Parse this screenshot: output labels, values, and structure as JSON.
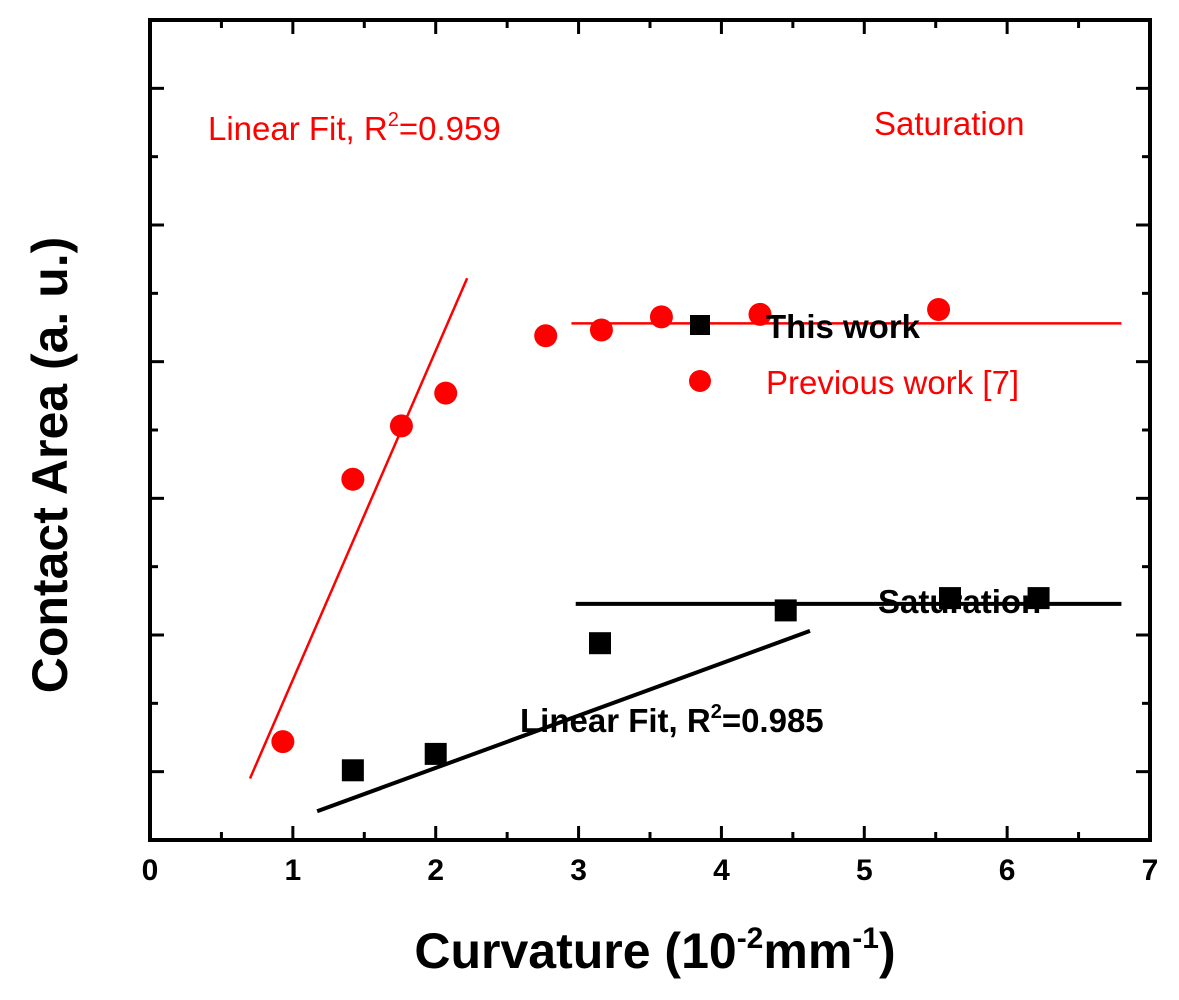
{
  "chart_data": {
    "type": "scatter",
    "xlabel": "Curvature (10",
    "xlabel_sup1": "-2",
    "xlabel_mid": "mm",
    "xlabel_sup2": "-1",
    "xlabel_end": ")",
    "ylabel": "Contact Area (a. u.)",
    "xlim": [
      0,
      7
    ],
    "ylim": [
      0,
      10
    ],
    "x_ticks": [
      0,
      1,
      2,
      3,
      4,
      5,
      6,
      7
    ],
    "x_tick_labels": [
      "0",
      "1",
      "2",
      "3",
      "4",
      "5",
      "6",
      "7"
    ],
    "y_tick_labels_shown": false,
    "series": [
      {
        "name": "This work",
        "marker": "square",
        "color": "#000000",
        "x": [
          1.42,
          2.0,
          3.15,
          4.45,
          5.6,
          6.22
        ],
        "y": [
          0.85,
          1.05,
          2.4,
          2.8,
          2.95,
          2.95
        ]
      },
      {
        "name": "Previous work [7]",
        "marker": "circle",
        "color": "#ff0000",
        "x": [
          0.93,
          1.42,
          1.76,
          2.07,
          2.77,
          3.16,
          3.58,
          4.27,
          5.52
        ],
        "y": [
          1.2,
          4.4,
          5.05,
          5.45,
          6.15,
          6.22,
          6.38,
          6.41,
          6.47
        ]
      }
    ],
    "fit_lines": [
      {
        "series": "Previous work [7]",
        "kind": "linear",
        "x": [
          0.7,
          2.22
        ],
        "y": [
          0.75,
          6.85
        ],
        "color": "#ff0000"
      },
      {
        "series": "Previous work [7]",
        "kind": "saturation",
        "x": [
          2.95,
          6.8
        ],
        "y": [
          6.3,
          6.3
        ],
        "color": "#ff0000"
      },
      {
        "series": "This work",
        "kind": "linear",
        "x": [
          1.17,
          4.62
        ],
        "y": [
          0.35,
          2.55
        ],
        "color": "#000000"
      },
      {
        "series": "This work",
        "kind": "saturation",
        "x": [
          2.98,
          6.8
        ],
        "y": [
          2.88,
          2.88
        ],
        "color": "#000000"
      }
    ],
    "annotations": [
      {
        "key": "red_fit",
        "text": "Linear Fit, R",
        "sup": "2",
        "tail": "=0.959",
        "color": "#ff0000"
      },
      {
        "key": "red_sat",
        "text": "Saturation",
        "color": "#ff0000"
      },
      {
        "key": "black_fit",
        "text": "Linear Fit, R",
        "sup": "2",
        "tail": "=0.985",
        "color": "#000000"
      },
      {
        "key": "black_sat",
        "text": "Saturation",
        "color": "#000000"
      }
    ],
    "legend_position": "center-right"
  }
}
